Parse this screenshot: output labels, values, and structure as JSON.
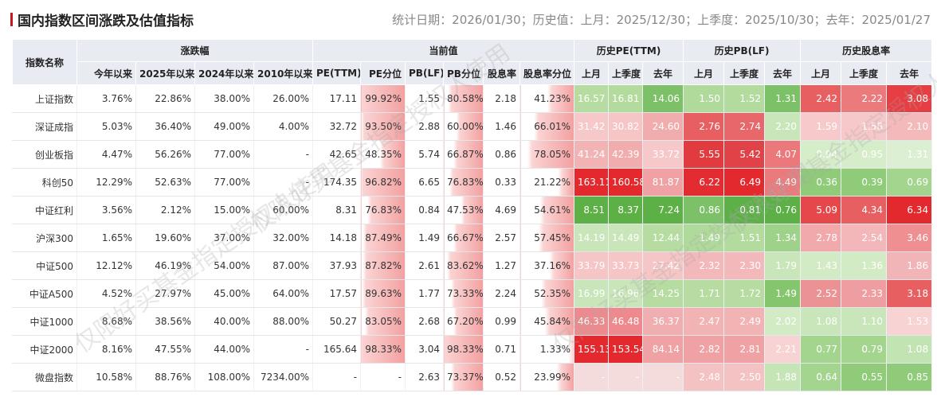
{
  "header": {
    "title": "国内指数区间涨跌及估值指标",
    "stats": "统计日期：2026/01/30；历史值：上月：2025/12/30；上季度：2025/10/30；去年：2025/01/27"
  },
  "watermark": "仅限好买基金指定授权人使用",
  "table": {
    "groups": {
      "name": "指数名称",
      "change": "涨跌幅",
      "current": "当前值",
      "hist_pe": "历史PE(TTM)",
      "hist_pb": "历史PB(LF)",
      "hist_div": "历史股息率"
    },
    "sub": [
      "今年以来",
      "2025年以来",
      "2024年以来",
      "2010年以来",
      "PE(TTM)",
      "PE分位",
      "PB(LF)",
      "PB分位",
      "股息率",
      "股息率分位",
      "上月",
      "上季度",
      "去年",
      "上月",
      "上季度",
      "去年",
      "上月",
      "上季度",
      "去年"
    ],
    "rows": [
      {
        "name": "上证指数",
        "cells": [
          "3.76%",
          "22.86%",
          "38.00%",
          "26.00%",
          "17.11",
          "99.92%",
          "1.55",
          "80.58%",
          "2.18",
          "41.23%",
          "16.57",
          "16.81",
          "14.06",
          "1.50",
          "1.52",
          "1.31",
          "2.42",
          "2.22",
          "3.08"
        ]
      },
      {
        "name": "深证成指",
        "cells": [
          "5.03%",
          "36.40%",
          "49.00%",
          "4.00%",
          "32.72",
          "93.50%",
          "2.88",
          "60.00%",
          "1.46",
          "66.01%",
          "31.42",
          "30.82",
          "24.60",
          "2.76",
          "2.74",
          "2.20",
          "1.59",
          "1.58",
          "2.10"
        ]
      },
      {
        "name": "创业板指",
        "cells": [
          "4.47%",
          "56.26%",
          "77.00%",
          "-",
          "42.65",
          "48.35%",
          "5.74",
          "66.87%",
          "0.86",
          "78.05%",
          "41.24",
          "42.39",
          "33.72",
          "5.55",
          "5.42",
          "4.07",
          "0.94",
          "0.95",
          "1.31"
        ]
      },
      {
        "name": "科创50",
        "cells": [
          "12.29%",
          "52.63%",
          "77.00%",
          "-",
          "174.35",
          "96.82%",
          "6.65",
          "76.83%",
          "0.33",
          "21.22%",
          "163.11",
          "160.58",
          "81.87",
          "6.22",
          "6.49",
          "4.49",
          "0.36",
          "0.39",
          "0.69"
        ]
      },
      {
        "name": "中证红利",
        "cells": [
          "3.56%",
          "2.12%",
          "15.00%",
          "60.00%",
          "8.31",
          "76.83%",
          "0.84",
          "47.53%",
          "4.69",
          "54.61%",
          "8.51",
          "8.37",
          "7.24",
          "0.86",
          "0.81",
          "0.76",
          "5.09",
          "4.34",
          "6.34"
        ]
      },
      {
        "name": "沪深300",
        "cells": [
          "1.65%",
          "19.60%",
          "37.00%",
          "32.00%",
          "14.18",
          "87.49%",
          "1.49",
          "66.67%",
          "2.57",
          "57.45%",
          "14.19",
          "14.49",
          "12.44",
          "1.49",
          "1.51",
          "1.34",
          "2.78",
          "2.54",
          "3.46"
        ]
      },
      {
        "name": "中证500",
        "cells": [
          "12.12%",
          "46.19%",
          "54.00%",
          "87.00%",
          "37.93",
          "87.82%",
          "2.61",
          "83.62%",
          "1.27",
          "37.16%",
          "33.79",
          "33.73",
          "27.42",
          "2.32",
          "2.30",
          "1.79",
          "1.43",
          "1.36",
          "1.86"
        ]
      },
      {
        "name": "中证A500",
        "cells": [
          "4.52%",
          "27.97%",
          "45.00%",
          "64.00%",
          "17.57",
          "89.63%",
          "1.77",
          "73.33%",
          "2.24",
          "52.35%",
          "16.99",
          "16.96",
          "14.25",
          "1.71",
          "1.72",
          "1.49",
          "2.52",
          "2.33",
          "3.18"
        ]
      },
      {
        "name": "中证1000",
        "cells": [
          "8.68%",
          "38.56%",
          "40.00%",
          "88.00%",
          "50.27",
          "83.05%",
          "2.68",
          "67.20%",
          "0.99",
          "45.84%",
          "46.33",
          "46.48",
          "36.37",
          "2.47",
          "2.49",
          "2.02",
          "1.08",
          "1.10",
          "1.53"
        ]
      },
      {
        "name": "中证2000",
        "cells": [
          "8.16%",
          "47.55%",
          "44.00%",
          "-",
          "165.64",
          "98.33%",
          "3.04",
          "98.33%",
          "0.71",
          "1.33%",
          "155.13",
          "153.54",
          "84.14",
          "2.82",
          "2.81",
          "2.21",
          "0.77",
          "0.79",
          "1.08"
        ]
      },
      {
        "name": "微盘指数",
        "cells": [
          "10.58%",
          "88.76%",
          "108.00%",
          "7234.00%",
          "-",
          "-",
          "2.63",
          "73.37%",
          "0.52",
          "23.99%",
          "-",
          "-",
          "-",
          "2.48",
          "2.50",
          "1.88",
          "0.64",
          "0.55",
          "0.85"
        ]
      }
    ],
    "heat": [
      [
        "#b6dca1",
        "#b3db9e",
        "#7cc167",
        "#b0da9b",
        "#b3db9e",
        "#7cc167",
        "#e85f62",
        "#eb7a7c",
        "#e63e42"
      ],
      [
        "#f7c8c9",
        "#f6c5c6",
        "#f1acae",
        "#e85f62",
        "#e8676a",
        "#c8e6b9",
        "#f7c9ca",
        "#f7c8c9",
        "#f3b9bb"
      ],
      [
        "#f2b3b5",
        "#f1acae",
        "#f7c8c9",
        "#e13a3f",
        "#e14247",
        "#eb787a",
        "#d6edc9",
        "#d6edc9",
        "#dcefd2"
      ],
      [
        "#e3292e",
        "#e3292e",
        "#f0a1a4",
        "#e32c31",
        "#e3292e",
        "#eb7a7c",
        "#8fcb78",
        "#8fcb78",
        "#a4d58f"
      ],
      [
        "#5cb046",
        "#5cb046",
        "#5cb046",
        "#7cc167",
        "#5cb046",
        "#5cb046",
        "#e6474b",
        "#e85f62",
        "#e3292e"
      ],
      [
        "#c8e6b9",
        "#c8e6b9",
        "#b6dca1",
        "#b0da9b",
        "#b3db9e",
        "#9ed18a",
        "#f2a9ab",
        "#f3b7b9",
        "#ef8f91"
      ],
      [
        "#f6c5c6",
        "#f6c5c6",
        "#f6c6c7",
        "#f3b8ba",
        "#f3b8ba",
        "#c8e6b9",
        "#d2ebc5",
        "#d2ebc5",
        "#f2b5b7"
      ],
      [
        "#c8e6b9",
        "#c8e6b9",
        "#b6dca1",
        "#b6dca1",
        "#b6dca1",
        "#84c56e",
        "#eb9294",
        "#ee9ea0",
        "#e85f62"
      ],
      [
        "#ee8a8d",
        "#ee8a8d",
        "#f1aeb0",
        "#f2b3b5",
        "#f2b3b5",
        "#d2ebc5",
        "#c8e6b9",
        "#c8e6b9",
        "#f8d3d4"
      ],
      [
        "#e3292e",
        "#e3292e",
        "#f0a1a4",
        "#f0a1a4",
        "#f0a1a4",
        "#f8d3d4",
        "#a4d58f",
        "#a4d58f",
        "#c2e3b2"
      ],
      [
        "#f5dcdc",
        "#f5dcdc",
        "#f5dcdc",
        "#f5c2c3",
        "#f5c2c3",
        "#c5e5b6",
        "#a4d58f",
        "#8fcb78",
        "#8fcb78"
      ]
    ]
  }
}
